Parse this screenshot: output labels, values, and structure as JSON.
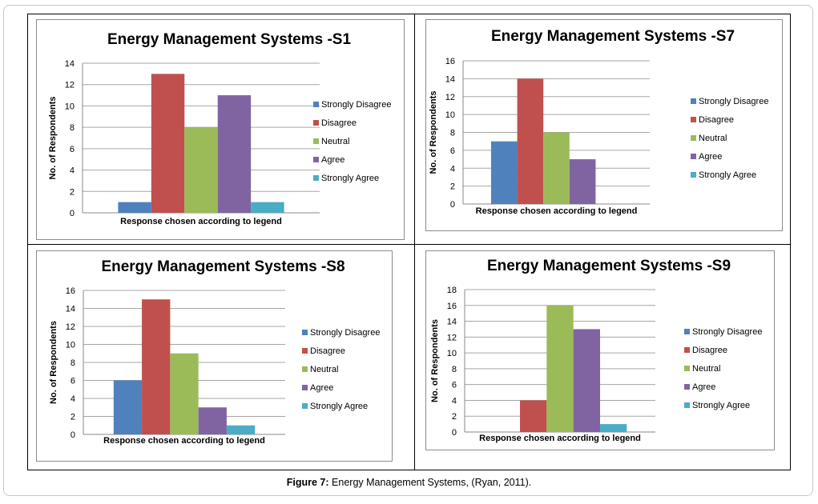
{
  "caption": {
    "label": "Figure 7:",
    "text": " Energy Management Systems, (Ryan, 2011)."
  },
  "colors": {
    "strongly_disagree": "#4f81bd",
    "disagree": "#c0504d",
    "neutral": "#9bbb59",
    "agree": "#8064a2",
    "strongly_agree": "#4bacc6"
  },
  "chart_data": [
    {
      "type": "bar",
      "title": "Energy Management Systems -S1",
      "xlabel": "Response chosen according to legend",
      "ylabel": "No. of Respondents",
      "ylim": [
        0,
        14
      ],
      "yticks": [
        0,
        2,
        4,
        6,
        8,
        10,
        12,
        14
      ],
      "grid": true,
      "legend": "right",
      "series": [
        {
          "name": "Strongly Disagree",
          "values": [
            1
          ]
        },
        {
          "name": "Disagree",
          "values": [
            13
          ]
        },
        {
          "name": "Neutral",
          "values": [
            8
          ]
        },
        {
          "name": "Agree",
          "values": [
            11
          ]
        },
        {
          "name": "Strongly Agree",
          "values": [
            1
          ]
        }
      ]
    },
    {
      "type": "bar",
      "title": "Energy Management Systems -S7",
      "xlabel": "Response chosen according to legend",
      "ylabel": "No. of Respondents",
      "ylim": [
        0,
        16
      ],
      "yticks": [
        0,
        2,
        4,
        6,
        8,
        10,
        12,
        14,
        16
      ],
      "grid": true,
      "legend": "right",
      "series": [
        {
          "name": "Strongly Disagree",
          "values": [
            7
          ]
        },
        {
          "name": "Disagree",
          "values": [
            14
          ]
        },
        {
          "name": "Neutral",
          "values": [
            8
          ]
        },
        {
          "name": "Agree",
          "values": [
            5
          ]
        },
        {
          "name": "Strongly Agree",
          "values": [
            0
          ]
        }
      ]
    },
    {
      "type": "bar",
      "title": "Energy Management Systems -S8",
      "xlabel": "Response chosen according to legend",
      "ylabel": "No. of Respondents",
      "ylim": [
        0,
        16
      ],
      "yticks": [
        0,
        2,
        4,
        6,
        8,
        10,
        12,
        14,
        16
      ],
      "grid": true,
      "legend": "right",
      "series": [
        {
          "name": "Strongly Disagree",
          "values": [
            6
          ]
        },
        {
          "name": "Disagree",
          "values": [
            15
          ]
        },
        {
          "name": "Neutral",
          "values": [
            9
          ]
        },
        {
          "name": "Agree",
          "values": [
            3
          ]
        },
        {
          "name": "Strongly Agree",
          "values": [
            1
          ]
        }
      ]
    },
    {
      "type": "bar",
      "title": "Energy Management Systems -S9",
      "xlabel": "Response chosen according to legend",
      "ylabel": "No. of Respondents",
      "ylim": [
        0,
        18
      ],
      "yticks": [
        0,
        2,
        4,
        6,
        8,
        10,
        12,
        14,
        16,
        18
      ],
      "grid": true,
      "legend": "right",
      "series": [
        {
          "name": "Strongly Disagree",
          "values": [
            0
          ]
        },
        {
          "name": "Disagree",
          "values": [
            4
          ]
        },
        {
          "name": "Neutral",
          "values": [
            16
          ]
        },
        {
          "name": "Agree",
          "values": [
            13
          ]
        },
        {
          "name": "Strongly Agree",
          "values": [
            1
          ]
        }
      ]
    }
  ]
}
